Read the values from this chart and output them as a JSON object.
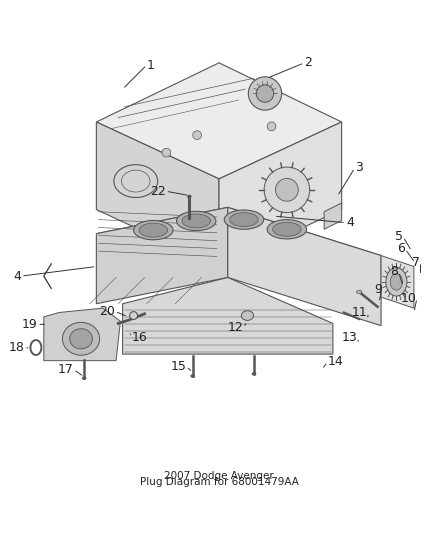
{
  "title": "2007 Dodge Avenger",
  "subtitle": "Plug Diagram for 68001479AA",
  "bg_color": "#ffffff",
  "line_color": "#555555",
  "text_color": "#222222",
  "callout_color": "#333333",
  "font_size_numbers": 9,
  "font_size_title": 7.5
}
